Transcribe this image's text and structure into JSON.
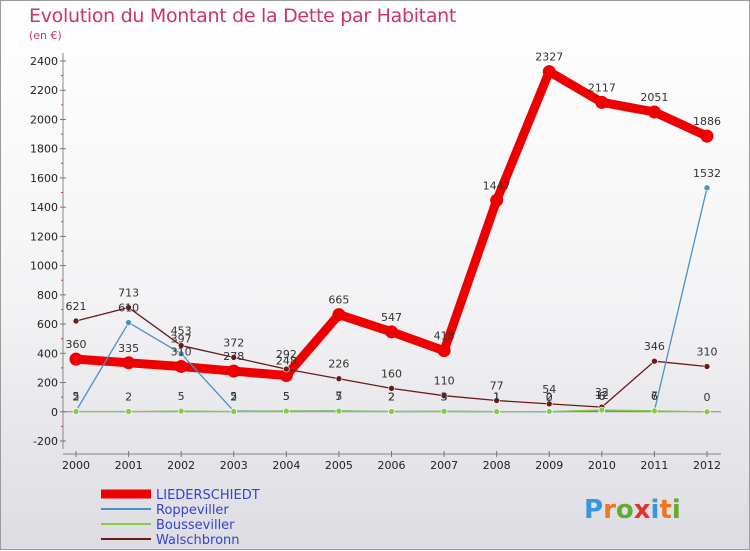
{
  "header": {
    "title": "Evolution du Montant de la Dette par Habitant",
    "subtitle": "(en €)"
  },
  "logo": {
    "text": "Proxiti"
  },
  "chart_data": {
    "type": "line",
    "title": "Evolution du Montant de la Dette par Habitant",
    "subtitle": "(en €)",
    "xlabel": "",
    "ylabel": "",
    "x": [
      "2000",
      "2001",
      "2002",
      "2003",
      "2004",
      "2005",
      "2006",
      "2007",
      "2008",
      "2009",
      "2010",
      "2011",
      "2012"
    ],
    "ylim": [
      -200,
      2400
    ],
    "yticks": [
      -200,
      0,
      200,
      400,
      600,
      800,
      1000,
      1200,
      1400,
      1600,
      1800,
      2000,
      2200,
      2400
    ],
    "grid": false,
    "legend_position": "bottom-left",
    "series": [
      {
        "name": "LIEDERSCHIEDT",
        "color": "#ee0000",
        "values": [
          360,
          335,
          310,
          278,
          248,
          665,
          547,
          418,
          1447,
          2327,
          2117,
          2051,
          1886
        ]
      },
      {
        "name": "Roppeviller",
        "color": "#4a90c8",
        "values": [
          5,
          610,
          397,
          5,
          5,
          7,
          2,
          3,
          1,
          0,
          6,
          7,
          1532
        ]
      },
      {
        "name": "Bousseviller",
        "color": "#88cc44",
        "values": [
          2,
          2,
          5,
          2,
          5,
          5,
          2,
          3,
          1,
          2,
          12,
          6,
          0
        ]
      },
      {
        "name": "Walschbronn",
        "color": "#6b1a1a",
        "values": [
          621,
          713,
          453,
          372,
          292,
          226,
          160,
          110,
          77,
          54,
          32,
          346,
          310
        ]
      }
    ]
  }
}
